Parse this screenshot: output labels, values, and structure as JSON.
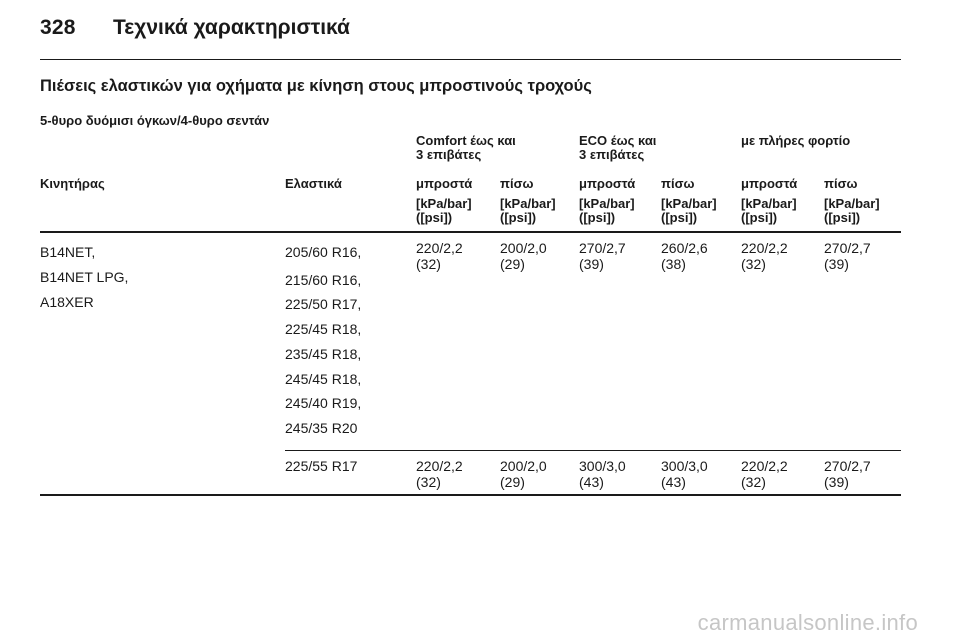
{
  "header": {
    "page_number": "328",
    "title": "Τεχνικά χαρακτηριστικά"
  },
  "section_title": "Πιέσεις ελαστικών για οχήματα με κίνηση στους μπροστινούς τροχούς",
  "subsection_title": "5-θυρο δυόμισι όγκων/4-θυρο σεντάν",
  "table": {
    "group_headers": [
      {
        "line1": "Comfort έως και",
        "line2": "3 επιβάτες"
      },
      {
        "line1": "ECO έως και",
        "line2": "3 επιβάτες"
      },
      {
        "line1": "με πλήρες φορτίο",
        "line2": ""
      }
    ],
    "engine_header": "Κινητήρας",
    "tyres_header": "Ελαστικά",
    "axle_headers": [
      "μπροστά",
      "πίσω",
      "μπροστά",
      "πίσω",
      "μπροστά",
      "πίσω"
    ],
    "unit_line1": "[kPa/bar]",
    "unit_line2": "([psi])",
    "rows": [
      {
        "engines": [
          "B14NET,",
          "B14NET LPG,",
          "A18XER"
        ],
        "tyres": [
          "205/60 R16,",
          "215/60 R16,",
          "225/50 R17,",
          "225/45 R18,",
          "235/45 R18,",
          "245/45 R18,",
          "245/40 R19,",
          "245/35 R20"
        ],
        "pressures": [
          {
            "kpa": "220/2,2",
            "psi": "(32)"
          },
          {
            "kpa": "200/2,0",
            "psi": "(29)"
          },
          {
            "kpa": "270/2,7",
            "psi": "(39)"
          },
          {
            "kpa": "260/2,6",
            "psi": "(38)"
          },
          {
            "kpa": "220/2,2",
            "psi": "(32)"
          },
          {
            "kpa": "270/2,7",
            "psi": "(39)"
          }
        ]
      },
      {
        "engines": [],
        "tyres": [
          "225/55 R17"
        ],
        "pressures": [
          {
            "kpa": "220/2,2",
            "psi": "(32)"
          },
          {
            "kpa": "200/2,0",
            "psi": "(29)"
          },
          {
            "kpa": "300/3,0",
            "psi": "(43)"
          },
          {
            "kpa": "300/3,0",
            "psi": "(43)"
          },
          {
            "kpa": "220/2,2",
            "psi": "(32)"
          },
          {
            "kpa": "270/2,7",
            "psi": "(39)"
          }
        ]
      }
    ]
  },
  "watermark": "carmanualsonline.info"
}
